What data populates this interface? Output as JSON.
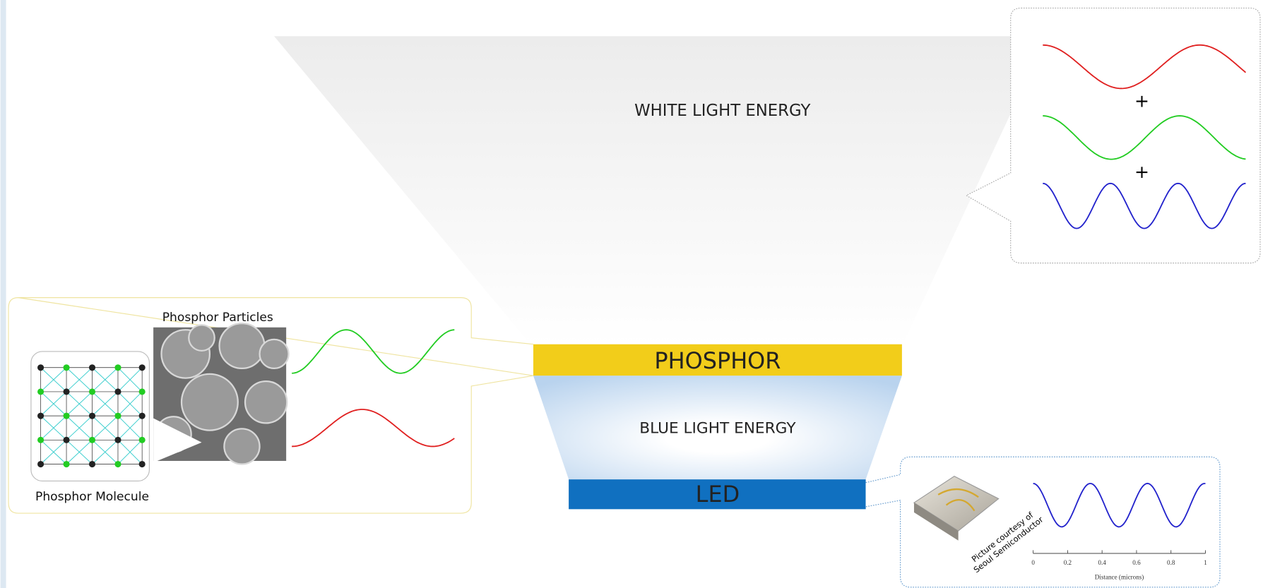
{
  "white_light": {
    "label": "WHITE LIGHT ENERGY",
    "plus": [
      "+",
      "+"
    ]
  },
  "phosphor": {
    "label": "PHOSPHOR",
    "particles_label": "Phosphor Particles",
    "molecule_label": "Phosphor Molecule"
  },
  "blue_light": {
    "label": "BLUE LIGHT ENERGY"
  },
  "led": {
    "label": "LED",
    "credit": [
      "Picture courtesy of",
      "Seoul Semiconductor"
    ],
    "axis": {
      "ticks": [
        0,
        0.2,
        0.4,
        0.6,
        0.8,
        1
      ],
      "label": "Distance (microns)"
    }
  }
}
